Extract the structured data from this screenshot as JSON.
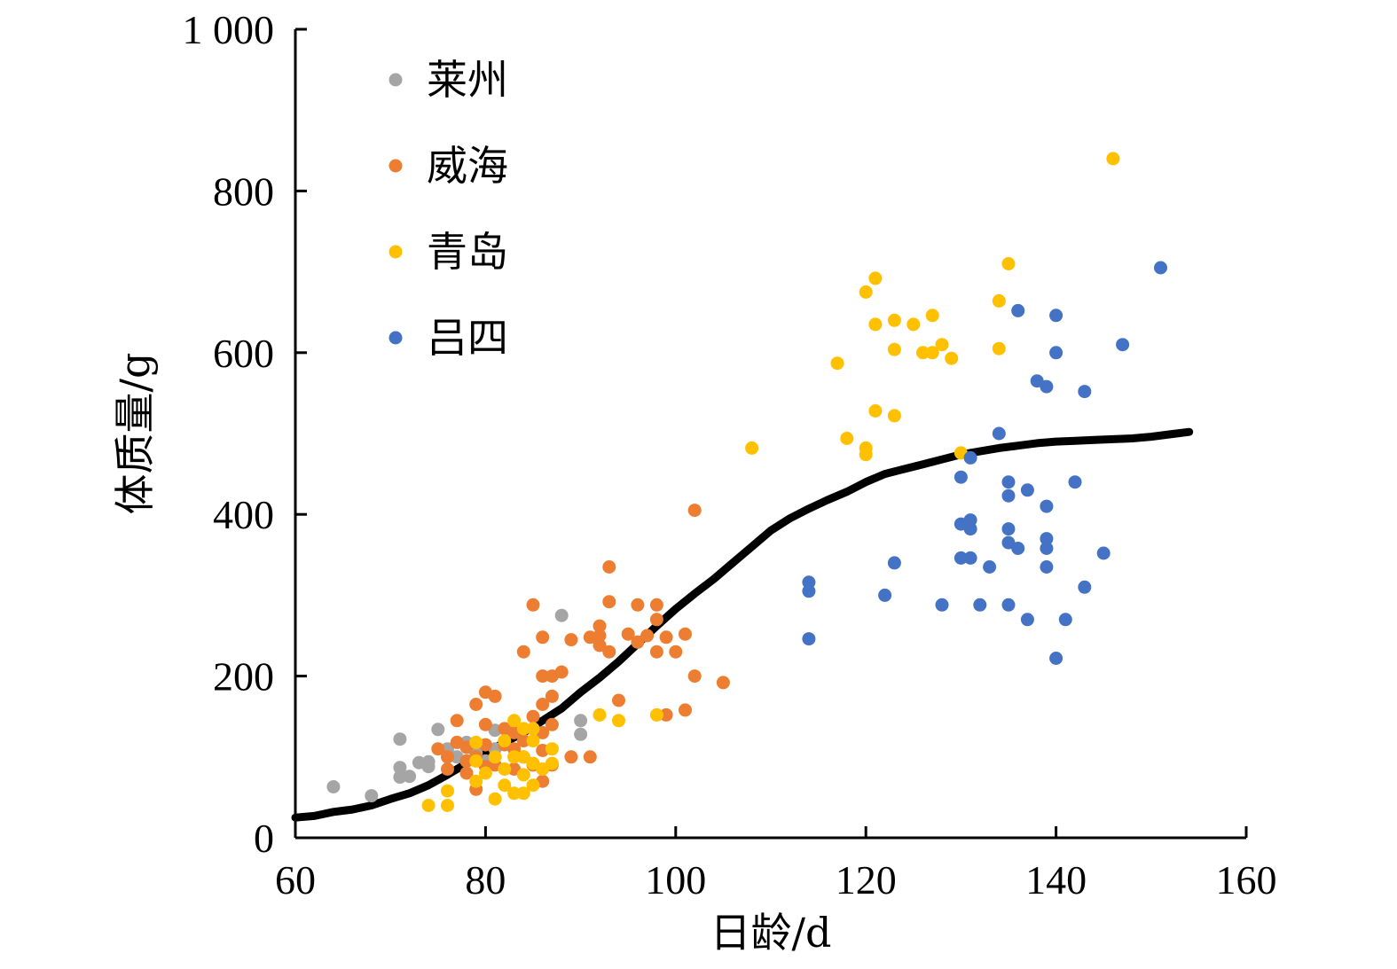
{
  "chart_data": {
    "type": "scatter",
    "title": "",
    "xlabel": "日龄/d",
    "ylabel": "体质量/g",
    "xlim": [
      60,
      160
    ],
    "ylim": [
      0,
      1000
    ],
    "x_ticks": [
      60,
      80,
      100,
      120,
      140,
      160
    ],
    "x_tick_labels": [
      "60",
      "80",
      "100",
      "120",
      "140",
      "160"
    ],
    "y_ticks": [
      0,
      200,
      400,
      600,
      800,
      1000
    ],
    "y_tick_labels": [
      "0",
      "200",
      "400",
      "600",
      "800",
      "1 000"
    ],
    "grid": false,
    "legend_position": "top-left",
    "series": [
      {
        "name": "莱州",
        "color": "#a5a5a5",
        "points": [
          [
            64,
            63
          ],
          [
            68,
            52
          ],
          [
            71,
            122
          ],
          [
            71,
            87
          ],
          [
            71,
            75
          ],
          [
            72,
            76
          ],
          [
            73,
            93
          ],
          [
            74,
            94
          ],
          [
            74,
            88
          ],
          [
            75,
            134
          ],
          [
            76,
            110
          ],
          [
            77,
            100
          ],
          [
            78,
            118
          ],
          [
            78,
            95
          ],
          [
            79,
            105
          ],
          [
            80,
            95
          ],
          [
            81,
            110
          ],
          [
            81,
            133
          ],
          [
            88,
            275
          ],
          [
            90,
            145
          ],
          [
            90,
            128
          ]
        ]
      },
      {
        "name": "威海",
        "color": "#ed7d31",
        "points": [
          [
            75,
            110
          ],
          [
            76,
            100
          ],
          [
            76,
            85
          ],
          [
            77,
            118
          ],
          [
            77,
            145
          ],
          [
            78,
            112
          ],
          [
            78,
            95
          ],
          [
            78,
            80
          ],
          [
            79,
            165
          ],
          [
            79,
            100
          ],
          [
            79,
            60
          ],
          [
            80,
            180
          ],
          [
            80,
            140
          ],
          [
            80,
            115
          ],
          [
            80,
            88
          ],
          [
            81,
            175
          ],
          [
            81,
            90
          ],
          [
            82,
            135
          ],
          [
            82,
            115
          ],
          [
            83,
            130
          ],
          [
            83,
            110
          ],
          [
            83,
            85
          ],
          [
            84,
            230
          ],
          [
            84,
            120
          ],
          [
            84,
            100
          ],
          [
            85,
            288
          ],
          [
            85,
            150
          ],
          [
            85,
            90
          ],
          [
            86,
            248
          ],
          [
            86,
            200
          ],
          [
            86,
            165
          ],
          [
            86,
            130
          ],
          [
            86,
            108
          ],
          [
            86,
            70
          ],
          [
            87,
            200
          ],
          [
            87,
            175
          ],
          [
            87,
            140
          ],
          [
            87,
            90
          ],
          [
            88,
            205
          ],
          [
            89,
            245
          ],
          [
            89,
            100
          ],
          [
            91,
            100
          ],
          [
            91,
            248
          ],
          [
            92,
            250
          ],
          [
            92,
            238
          ],
          [
            92,
            262
          ],
          [
            93,
            335
          ],
          [
            93,
            292
          ],
          [
            93,
            230
          ],
          [
            94,
            170
          ],
          [
            95,
            252
          ],
          [
            96,
            288
          ],
          [
            96,
            242
          ],
          [
            97,
            250
          ],
          [
            98,
            288
          ],
          [
            98,
            270
          ],
          [
            98,
            230
          ],
          [
            99,
            248
          ],
          [
            99,
            152
          ],
          [
            100,
            230
          ],
          [
            101,
            252
          ],
          [
            101,
            158
          ],
          [
            102,
            405
          ],
          [
            102,
            200
          ],
          [
            105,
            192
          ]
        ]
      },
      {
        "name": "青岛",
        "color": "#ffc000",
        "points": [
          [
            74,
            40
          ],
          [
            76,
            58
          ],
          [
            76,
            40
          ],
          [
            79,
            118
          ],
          [
            79,
            95
          ],
          [
            79,
            70
          ],
          [
            80,
            80
          ],
          [
            81,
            100
          ],
          [
            81,
            48
          ],
          [
            82,
            120
          ],
          [
            82,
            85
          ],
          [
            82,
            65
          ],
          [
            83,
            145
          ],
          [
            83,
            100
          ],
          [
            83,
            55
          ],
          [
            84,
            135
          ],
          [
            84,
            100
          ],
          [
            84,
            78
          ],
          [
            84,
            55
          ],
          [
            85,
            135
          ],
          [
            85,
            120
          ],
          [
            85,
            92
          ],
          [
            85,
            65
          ],
          [
            86,
            85
          ],
          [
            87,
            110
          ],
          [
            87,
            92
          ],
          [
            92,
            152
          ],
          [
            94,
            145
          ],
          [
            98,
            152
          ],
          [
            108,
            482
          ],
          [
            117,
            587
          ],
          [
            118,
            494
          ],
          [
            120,
            675
          ],
          [
            120,
            482
          ],
          [
            120,
            474
          ],
          [
            121,
            692
          ],
          [
            121,
            635
          ],
          [
            121,
            528
          ],
          [
            123,
            640
          ],
          [
            123,
            604
          ],
          [
            123,
            522
          ],
          [
            125,
            635
          ],
          [
            126,
            600
          ],
          [
            127,
            646
          ],
          [
            127,
            600
          ],
          [
            128,
            610
          ],
          [
            129,
            593
          ],
          [
            130,
            476
          ],
          [
            134,
            664
          ],
          [
            134,
            605
          ],
          [
            135,
            710
          ],
          [
            146,
            840
          ]
        ]
      },
      {
        "name": "吕四",
        "color": "#4472c4",
        "points": [
          [
            114,
            316
          ],
          [
            114,
            305
          ],
          [
            114,
            246
          ],
          [
            122,
            300
          ],
          [
            123,
            340
          ],
          [
            128,
            288
          ],
          [
            130,
            446
          ],
          [
            130,
            388
          ],
          [
            130,
            346
          ],
          [
            131,
            470
          ],
          [
            131,
            393
          ],
          [
            131,
            382
          ],
          [
            131,
            346
          ],
          [
            132,
            288
          ],
          [
            133,
            335
          ],
          [
            134,
            500
          ],
          [
            135,
            440
          ],
          [
            135,
            423
          ],
          [
            135,
            382
          ],
          [
            135,
            365
          ],
          [
            135,
            288
          ],
          [
            136,
            652
          ],
          [
            136,
            358
          ],
          [
            137,
            430
          ],
          [
            137,
            270
          ],
          [
            138,
            565
          ],
          [
            139,
            558
          ],
          [
            139,
            410
          ],
          [
            139,
            370
          ],
          [
            139,
            358
          ],
          [
            139,
            335
          ],
          [
            140,
            646
          ],
          [
            140,
            600
          ],
          [
            140,
            222
          ],
          [
            141,
            270
          ],
          [
            142,
            440
          ],
          [
            143,
            552
          ],
          [
            143,
            310
          ],
          [
            145,
            352
          ],
          [
            147,
            610
          ],
          [
            151,
            705
          ]
        ]
      }
    ],
    "fit_line": {
      "color": "#000000",
      "x": [
        60,
        62,
        64,
        66,
        68,
        70,
        72,
        74,
        76,
        78,
        80,
        82,
        84,
        86,
        88,
        90,
        92,
        94,
        96,
        98,
        100,
        102,
        104,
        106,
        108,
        110,
        112,
        114,
        116,
        118,
        120,
        122,
        124,
        126,
        128,
        130,
        132,
        134,
        136,
        138,
        140,
        142,
        144,
        146,
        148,
        150,
        152,
        154
      ],
      "y": [
        25,
        27,
        32,
        35,
        40,
        48,
        55,
        65,
        78,
        92,
        105,
        118,
        130,
        145,
        160,
        180,
        198,
        218,
        240,
        262,
        283,
        302,
        320,
        340,
        360,
        380,
        395,
        407,
        418,
        428,
        440,
        450,
        456,
        462,
        468,
        474,
        478,
        482,
        485,
        488,
        490,
        491,
        492,
        493,
        494,
        496,
        499,
        502
      ]
    }
  }
}
